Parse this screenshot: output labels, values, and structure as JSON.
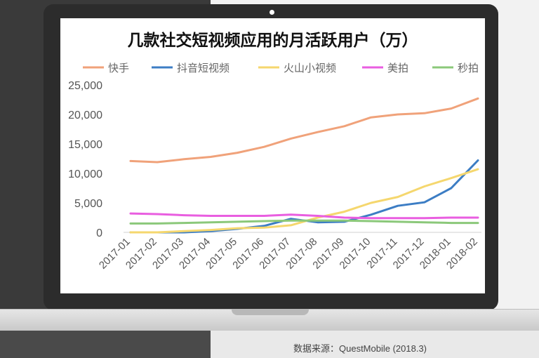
{
  "chart_data": {
    "type": "line",
    "title": "几款社交短视频应用的月活跃用户（万）",
    "categories": [
      "2017-01",
      "2017-02",
      "2017-03",
      "2017-04",
      "2017-05",
      "2017-06",
      "2017-07",
      "2017-08",
      "2017-09",
      "2017-10",
      "2017-11",
      "2017-12",
      "2018-01",
      "2018-02"
    ],
    "ylim": [
      0,
      25000
    ],
    "yticks": [
      "0",
      "5,000",
      "10,000",
      "15,000",
      "20,000",
      "25,000"
    ],
    "grid": false,
    "legend_position": "top",
    "series": [
      {
        "name": "快手",
        "color": "#f0a27a",
        "values": [
          12100,
          11900,
          12400,
          12800,
          13500,
          14500,
          15900,
          17000,
          18000,
          19500,
          20000,
          20200,
          21000,
          22700
        ]
      },
      {
        "name": "抖音短视频",
        "color": "#3c7dc4",
        "values": [
          0,
          0,
          0,
          200,
          600,
          1100,
          2300,
          1700,
          1800,
          3000,
          4500,
          5100,
          7500,
          12200
        ]
      },
      {
        "name": "火山小视频",
        "color": "#f5d76e",
        "values": [
          0,
          0,
          200,
          400,
          700,
          800,
          1200,
          2500,
          3500,
          5000,
          6000,
          7800,
          9200,
          10700
        ]
      },
      {
        "name": "美拍",
        "color": "#e95ee0",
        "values": [
          3200,
          3100,
          2900,
          2800,
          2800,
          2800,
          3000,
          2800,
          2500,
          2400,
          2400,
          2400,
          2500,
          2500
        ]
      },
      {
        "name": "秒拍",
        "color": "#8bc87a",
        "values": [
          1500,
          1500,
          1600,
          1700,
          1800,
          1900,
          2000,
          2000,
          2000,
          1900,
          1800,
          1700,
          1600,
          1600
        ]
      }
    ]
  },
  "source_text": "数据来源：QuestMobile (2018.3)"
}
